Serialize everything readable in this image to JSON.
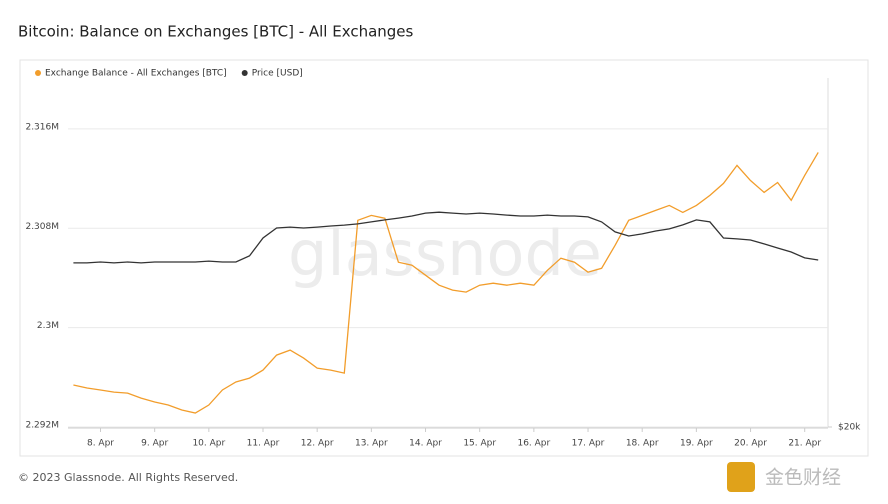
{
  "chart_data": {
    "type": "line",
    "title": "Bitcoin: Balance on Exchanges [BTC] - All Exchanges",
    "x": [
      7.5,
      7.75,
      8,
      8.25,
      8.5,
      8.75,
      9,
      9.25,
      9.5,
      9.75,
      10,
      10.25,
      10.5,
      10.75,
      11,
      11.25,
      11.5,
      11.75,
      12,
      12.25,
      12.5,
      12.75,
      13,
      13.25,
      13.5,
      13.75,
      14,
      14.25,
      14.5,
      14.75,
      15,
      15.25,
      15.5,
      15.75,
      16,
      16.25,
      16.5,
      16.75,
      17,
      17.25,
      17.5,
      17.75,
      18,
      18.25,
      18.5,
      18.75,
      19,
      19.25,
      19.5,
      19.75,
      20,
      20.25,
      20.5,
      20.75,
      21,
      21.25
    ],
    "xlim": [
      7.4,
      21.43
    ],
    "xticks": [
      {
        "value": 8,
        "label": "8. Apr"
      },
      {
        "value": 9,
        "label": "9. Apr"
      },
      {
        "value": 10,
        "label": "10. Apr"
      },
      {
        "value": 11,
        "label": "11. Apr"
      },
      {
        "value": 12,
        "label": "12. Apr"
      },
      {
        "value": 13,
        "label": "13. Apr"
      },
      {
        "value": 14,
        "label": "14. Apr"
      },
      {
        "value": 15,
        "label": "15. Apr"
      },
      {
        "value": 16,
        "label": "16. Apr"
      },
      {
        "value": 17,
        "label": "17. Apr"
      },
      {
        "value": 18,
        "label": "18. Apr"
      },
      {
        "value": 19,
        "label": "19. Apr"
      },
      {
        "value": 20,
        "label": "20. Apr"
      },
      {
        "value": 21,
        "label": "21. Apr"
      }
    ],
    "ylim": [
      2292000,
      2320100
    ],
    "yticks": [
      {
        "value": 2292000,
        "label": "2.292M"
      },
      {
        "value": 2300000,
        "label": "2.3M"
      },
      {
        "value": 2308000,
        "label": "2.308M"
      },
      {
        "value": 2316000,
        "label": "2.316M"
      }
    ],
    "y2lim": [
      20000,
      35400
    ],
    "y2ticks": [
      {
        "value": 20000,
        "label": "$20k"
      }
    ],
    "grid": true,
    "legend": "top-left",
    "watermark": "glassnode",
    "series": [
      {
        "name": "Exchange Balance - All Exchanges [BTC]",
        "color": "#f29d2b",
        "values": [
          2295380,
          2295140,
          2294980,
          2294810,
          2294730,
          2294330,
          2294010,
          2293770,
          2293370,
          2293130,
          2293770,
          2294980,
          2295620,
          2295940,
          2296580,
          2297790,
          2298190,
          2297550,
          2296740,
          2296580,
          2296340,
          2308640,
          2309040,
          2308800,
          2305270,
          2305030,
          2304220,
          2303420,
          2303020,
          2302860,
          2303420,
          2303580,
          2303420,
          2303580,
          2303420,
          2304620,
          2305590,
          2305270,
          2304460,
          2304780,
          2306630,
          2308640,
          2309040,
          2309440,
          2309840,
          2309280,
          2309840,
          2310650,
          2311610,
          2313060,
          2311850,
          2310890,
          2311690,
          2310250,
          2312260,
          2314110
        ]
      },
      {
        "name": "Price [USD]",
        "color": "#333333",
        "axis": "y2",
        "values": [
          27240,
          27240,
          27280,
          27240,
          27280,
          27240,
          27280,
          27280,
          27280,
          27280,
          27320,
          27280,
          27280,
          27550,
          28340,
          28780,
          28820,
          28780,
          28820,
          28870,
          28910,
          28960,
          29050,
          29140,
          29220,
          29310,
          29440,
          29480,
          29440,
          29400,
          29440,
          29400,
          29350,
          29310,
          29310,
          29350,
          29310,
          29310,
          29270,
          29050,
          28610,
          28430,
          28520,
          28650,
          28740,
          28920,
          29140,
          29050,
          28340,
          28300,
          28250,
          28080,
          27900,
          27720,
          27460,
          27370
        ]
      }
    ]
  },
  "footer": "© 2023 Glassnode. All Rights Reserved.",
  "logo_text": "金色财经"
}
